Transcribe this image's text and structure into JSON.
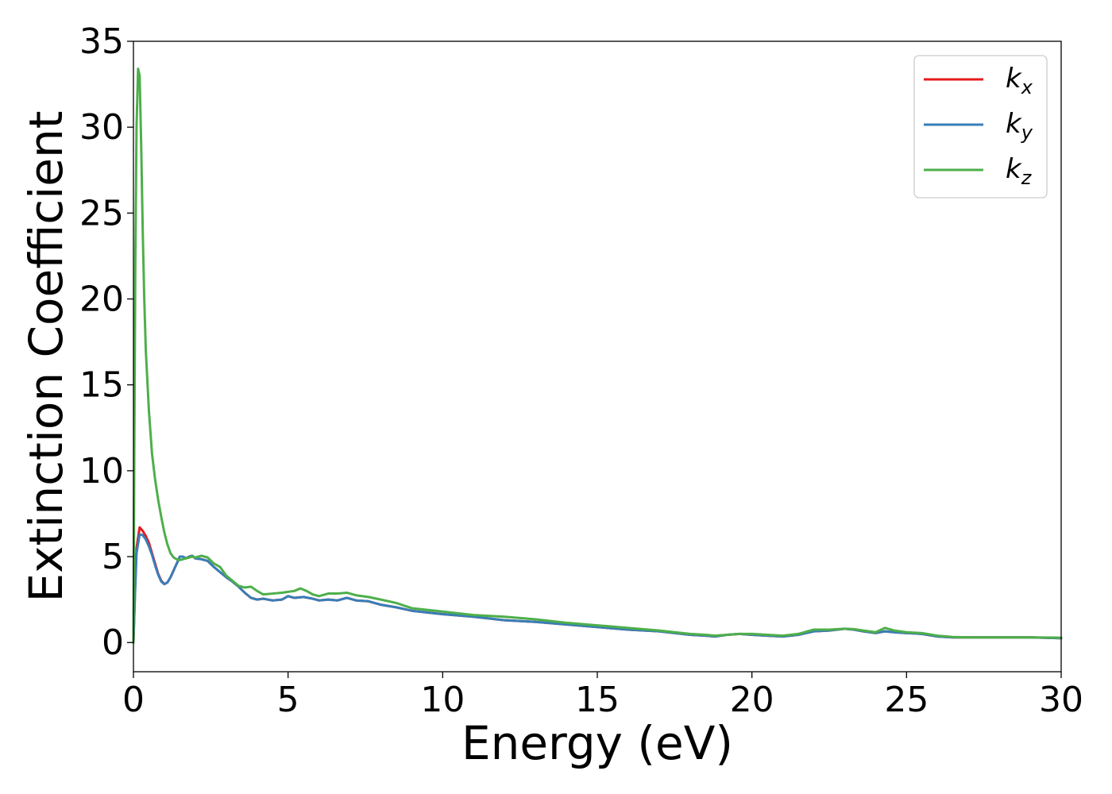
{
  "chart_data": {
    "type": "line",
    "title": "",
    "xlabel": "Energy (eV)",
    "ylabel": "Extinction Coefficient",
    "xlim": [
      0,
      30
    ],
    "ylim": [
      -1.7,
      35
    ],
    "xticks": [
      0,
      5,
      10,
      15,
      20,
      25,
      30
    ],
    "yticks": [
      0,
      5,
      10,
      15,
      20,
      25,
      30,
      35
    ],
    "grid": false,
    "legend_position": "top-right",
    "series": [
      {
        "name": "k",
        "subscript": "x",
        "color": "#e41a1c",
        "x": [
          0,
          0.05,
          0.1,
          0.2,
          0.3,
          0.4,
          0.5,
          0.6,
          0.7,
          0.8,
          0.9,
          1.0,
          1.1,
          1.2,
          1.3,
          1.4,
          1.5,
          1.6,
          1.7,
          1.8,
          1.9,
          2.0,
          2.2,
          2.4,
          2.6,
          2.8,
          3.0,
          3.2,
          3.4,
          3.6,
          3.8,
          4.0,
          4.2,
          4.5,
          4.8,
          5.0,
          5.2,
          5.5,
          5.8,
          6.0,
          6.3,
          6.6,
          6.9,
          7.2,
          7.6,
          8.0,
          8.5,
          9.0,
          9.5,
          10.0,
          11.0,
          12.0,
          13.0,
          14.0,
          15.0,
          16.0,
          17.0,
          18.0,
          18.5,
          18.8,
          19.2,
          19.6,
          20.0,
          20.5,
          21.0,
          21.5,
          22.0,
          22.5,
          23.0,
          23.3,
          23.6,
          24.0,
          24.3,
          24.6,
          25.0,
          25.5,
          26.0,
          26.5,
          27.0,
          28.0,
          29.0,
          30.0
        ],
        "y": [
          0,
          3.0,
          5.5,
          6.7,
          6.5,
          6.2,
          5.8,
          5.2,
          4.6,
          4.0,
          3.6,
          3.4,
          3.5,
          3.8,
          4.2,
          4.6,
          5.0,
          5.0,
          4.9,
          5.0,
          5.05,
          4.9,
          4.85,
          4.75,
          4.4,
          4.1,
          3.8,
          3.55,
          3.25,
          2.9,
          2.6,
          2.5,
          2.55,
          2.45,
          2.5,
          2.7,
          2.6,
          2.65,
          2.55,
          2.45,
          2.5,
          2.45,
          2.6,
          2.45,
          2.4,
          2.2,
          2.05,
          1.85,
          1.75,
          1.65,
          1.5,
          1.3,
          1.2,
          1.05,
          0.9,
          0.75,
          0.65,
          0.45,
          0.4,
          0.35,
          0.45,
          0.5,
          0.45,
          0.4,
          0.35,
          0.45,
          0.65,
          0.7,
          0.8,
          0.75,
          0.65,
          0.55,
          0.65,
          0.6,
          0.55,
          0.5,
          0.35,
          0.3,
          0.3,
          0.3,
          0.3,
          0.25
        ]
      },
      {
        "name": "k",
        "subscript": "y",
        "color": "#377eb8",
        "x": [
          0,
          0.05,
          0.1,
          0.2,
          0.3,
          0.4,
          0.5,
          0.6,
          0.7,
          0.8,
          0.9,
          1.0,
          1.1,
          1.2,
          1.3,
          1.4,
          1.5,
          1.6,
          1.7,
          1.8,
          1.9,
          2.0,
          2.2,
          2.4,
          2.6,
          2.8,
          3.0,
          3.2,
          3.4,
          3.6,
          3.8,
          4.0,
          4.2,
          4.5,
          4.8,
          5.0,
          5.2,
          5.5,
          5.8,
          6.0,
          6.3,
          6.6,
          6.9,
          7.2,
          7.6,
          8.0,
          8.5,
          9.0,
          9.5,
          10.0,
          11.0,
          12.0,
          13.0,
          14.0,
          15.0,
          16.0,
          17.0,
          18.0,
          18.5,
          18.8,
          19.2,
          19.6,
          20.0,
          20.5,
          21.0,
          21.5,
          22.0,
          22.5,
          23.0,
          23.3,
          23.6,
          24.0,
          24.3,
          24.6,
          25.0,
          25.5,
          26.0,
          26.5,
          27.0,
          28.0,
          29.0,
          30.0
        ],
        "y": [
          0,
          2.8,
          5.2,
          6.3,
          6.25,
          6.0,
          5.6,
          5.1,
          4.5,
          3.95,
          3.55,
          3.4,
          3.5,
          3.8,
          4.2,
          4.6,
          5.0,
          5.0,
          4.9,
          5.0,
          5.05,
          4.9,
          4.85,
          4.75,
          4.4,
          4.1,
          3.8,
          3.55,
          3.25,
          2.9,
          2.6,
          2.5,
          2.55,
          2.45,
          2.5,
          2.7,
          2.6,
          2.65,
          2.55,
          2.45,
          2.5,
          2.45,
          2.6,
          2.45,
          2.4,
          2.2,
          2.05,
          1.85,
          1.75,
          1.65,
          1.5,
          1.3,
          1.2,
          1.05,
          0.9,
          0.75,
          0.65,
          0.45,
          0.4,
          0.35,
          0.45,
          0.5,
          0.45,
          0.4,
          0.35,
          0.45,
          0.65,
          0.7,
          0.8,
          0.75,
          0.65,
          0.55,
          0.65,
          0.6,
          0.55,
          0.5,
          0.35,
          0.3,
          0.3,
          0.3,
          0.3,
          0.25
        ]
      },
      {
        "name": "k",
        "subscript": "z",
        "color": "#4daf4a",
        "x": [
          0,
          0.03,
          0.06,
          0.1,
          0.15,
          0.2,
          0.25,
          0.3,
          0.35,
          0.4,
          0.5,
          0.6,
          0.7,
          0.8,
          0.9,
          1.0,
          1.1,
          1.2,
          1.3,
          1.4,
          1.5,
          1.6,
          1.7,
          1.8,
          1.9,
          2.0,
          2.2,
          2.4,
          2.6,
          2.8,
          3.0,
          3.2,
          3.4,
          3.6,
          3.8,
          4.0,
          4.2,
          4.5,
          4.8,
          5.0,
          5.2,
          5.4,
          5.6,
          5.8,
          6.0,
          6.3,
          6.6,
          6.9,
          7.2,
          7.6,
          8.0,
          8.5,
          9.0,
          9.5,
          10.0,
          11.0,
          12.0,
          13.0,
          14.0,
          15.0,
          16.0,
          17.0,
          18.0,
          18.5,
          18.8,
          19.2,
          19.6,
          20.0,
          20.5,
          21.0,
          21.5,
          22.0,
          22.5,
          23.0,
          23.3,
          23.6,
          24.0,
          24.3,
          24.6,
          25.0,
          25.5,
          26.0,
          26.5,
          27.0,
          28.0,
          29.0,
          30.0
        ],
        "y": [
          0,
          12.0,
          22.0,
          30.0,
          33.4,
          33.0,
          29.0,
          24.0,
          20.0,
          17.0,
          13.5,
          11.0,
          9.5,
          8.3,
          7.3,
          6.4,
          5.7,
          5.2,
          4.95,
          4.85,
          4.8,
          4.85,
          4.9,
          4.95,
          5.0,
          4.95,
          5.05,
          4.95,
          4.6,
          4.4,
          3.9,
          3.6,
          3.3,
          3.2,
          3.25,
          3.0,
          2.8,
          2.85,
          2.9,
          2.95,
          3.0,
          3.15,
          3.0,
          2.8,
          2.7,
          2.85,
          2.85,
          2.9,
          2.75,
          2.65,
          2.5,
          2.3,
          2.0,
          1.9,
          1.8,
          1.6,
          1.5,
          1.35,
          1.15,
          1.0,
          0.85,
          0.7,
          0.5,
          0.45,
          0.4,
          0.45,
          0.5,
          0.5,
          0.45,
          0.4,
          0.5,
          0.75,
          0.75,
          0.8,
          0.78,
          0.7,
          0.6,
          0.85,
          0.7,
          0.6,
          0.55,
          0.4,
          0.32,
          0.3,
          0.3,
          0.3,
          0.28
        ]
      }
    ]
  }
}
